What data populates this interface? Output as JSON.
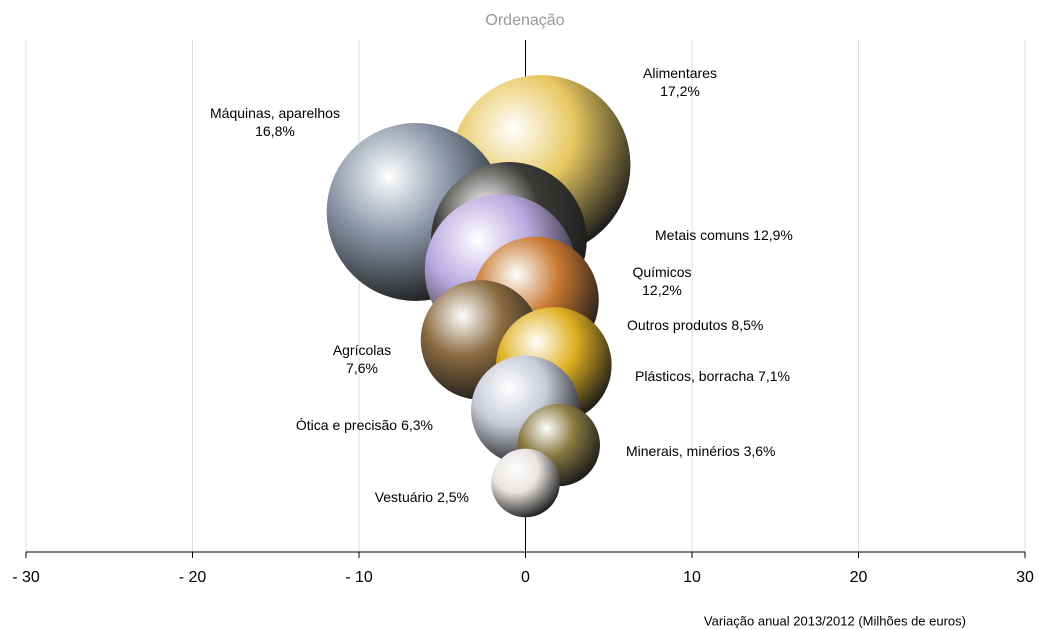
{
  "chart_data": {
    "type": "bubble",
    "title": "Ordenação",
    "x_label": "Variação anual 2013/2012 (Milhões de euros)",
    "categories": [
      "Alimentares",
      "Máquinas, aparelhos",
      "Metais comuns",
      "Químicos",
      "Outros produtos",
      "Agrícolas",
      "Plásticos, borracha",
      "Ótica e precisão",
      "Minerais, minérios",
      "Vestuário"
    ],
    "x": [
      0.9,
      -6.6,
      -1.0,
      -1.5,
      0.6,
      -2.7,
      1.7,
      0.0,
      2.0,
      0.0
    ],
    "sizes": [
      17.2,
      16.8,
      12.9,
      12.2,
      8.5,
      7.6,
      7.1,
      6.3,
      3.6,
      2.5
    ],
    "value_labels": [
      "17,2%",
      "16,8%",
      "12,9%",
      "12,2%",
      "8,5%",
      "7,6%",
      "7,1%",
      "6,3%",
      "3,6%",
      "2,5%"
    ],
    "colors": [
      "#e8c860",
      "#8a96a8",
      "#3a3a36",
      "#b8a8e0",
      "#c87830",
      "#8a6a40",
      "#e0b020",
      "#c8ccd8",
      "#8a7a40",
      "#e8e4e0"
    ],
    "xlim": [
      -30,
      30
    ],
    "xticks": [
      {
        "value": -30,
        "label": "- 30"
      },
      {
        "value": -20,
        "label": "- 20"
      },
      {
        "value": -10,
        "label": "- 10"
      },
      0,
      10,
      20,
      30
    ],
    "grid": true
  }
}
